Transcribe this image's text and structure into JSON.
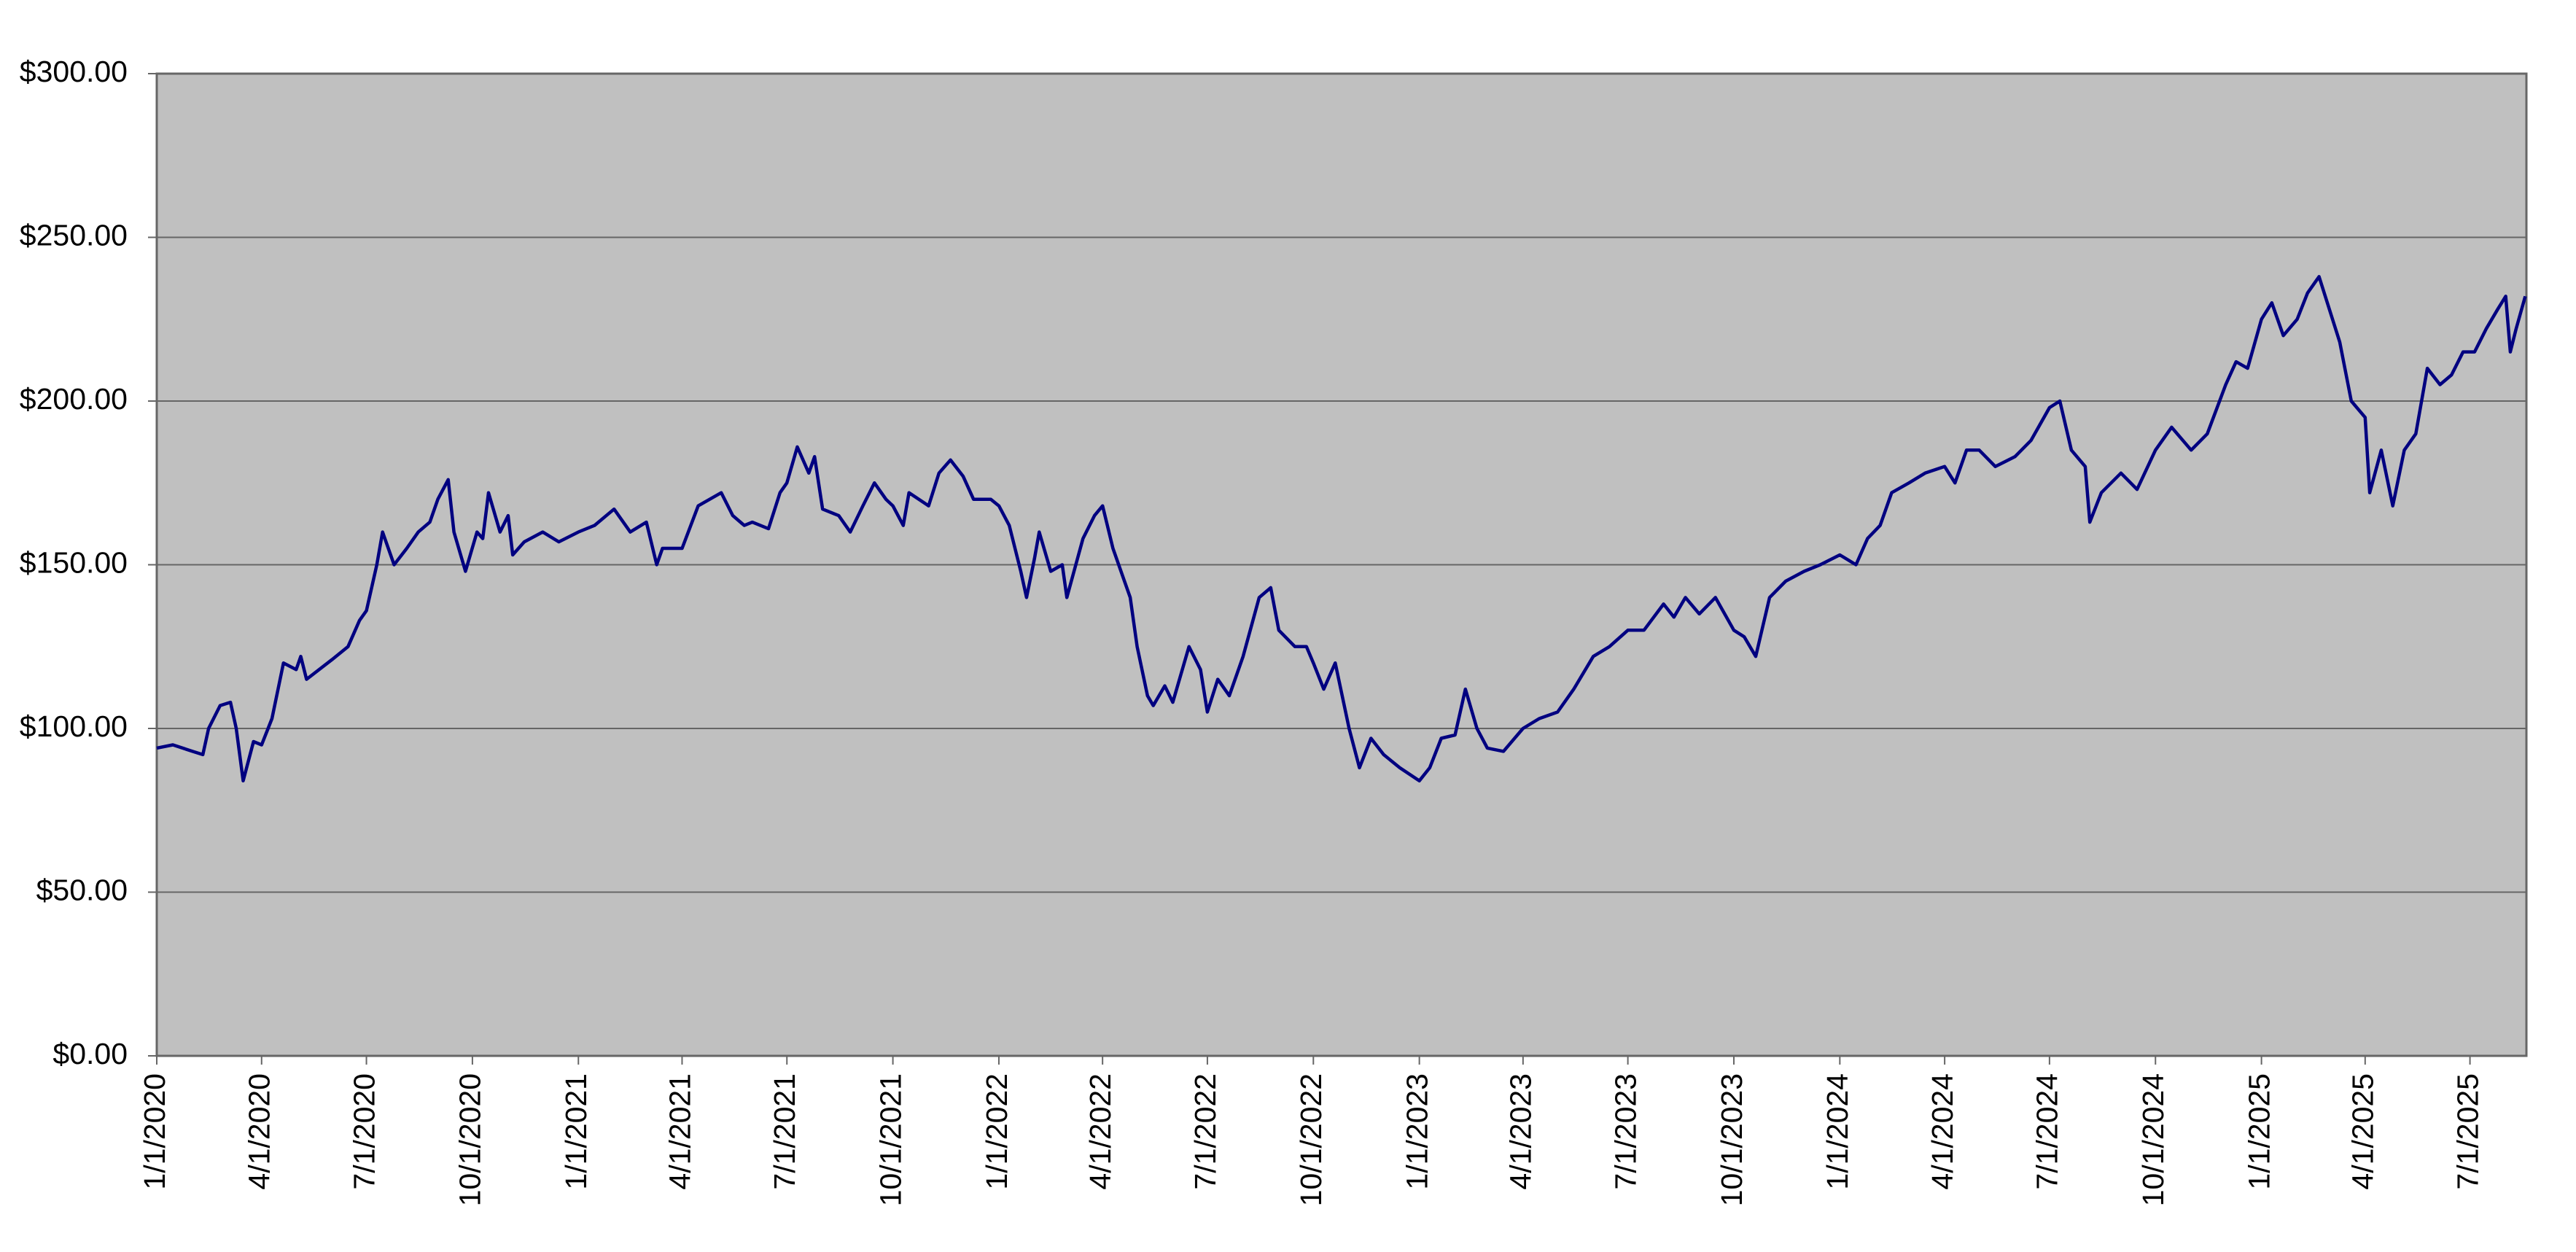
{
  "chart_data": {
    "type": "line",
    "x": [
      "1/1/2020",
      "1/15/2020",
      "2/1/2020",
      "2/10/2020",
      "2/15/2020",
      "2/25/2020",
      "3/5/2020",
      "3/10/2020",
      "3/16/2020",
      "3/25/2020",
      "4/1/2020",
      "4/10/2020",
      "4/20/2020",
      "5/1/2020",
      "5/5/2020",
      "5/10/2020",
      "6/1/2020",
      "6/15/2020",
      "6/25/2020",
      "7/1/2020",
      "7/10/2020",
      "7/15/2020",
      "7/25/2020",
      "8/5/2020",
      "8/15/2020",
      "8/25/2020",
      "9/1/2020",
      "9/10/2020",
      "9/15/2020",
      "9/25/2020",
      "10/5/2020",
      "10/10/2020",
      "10/15/2020",
      "10/25/2020",
      "11/1/2020",
      "11/5/2020",
      "11/15/2020",
      "12/1/2020",
      "12/15/2020",
      "1/1/2021",
      "1/15/2021",
      "2/1/2021",
      "2/15/2021",
      "3/1/2021",
      "3/10/2021",
      "3/15/2021",
      "4/1/2021",
      "4/15/2021",
      "4/25/2021",
      "5/5/2021",
      "5/15/2021",
      "5/25/2021",
      "6/1/2021",
      "6/15/2021",
      "6/25/2021",
      "7/1/2021",
      "7/10/2021",
      "7/20/2021",
      "7/25/2021",
      "8/1/2021",
      "8/15/2021",
      "8/25/2021",
      "9/5/2021",
      "9/15/2021",
      "9/25/2021",
      "10/1/2021",
      "10/10/2021",
      "10/15/2021",
      "11/1/2021",
      "11/10/2021",
      "11/20/2021",
      "12/1/2021",
      "12/10/2021",
      "12/25/2021",
      "1/1/2022",
      "1/10/2022",
      "1/20/2022",
      "1/25/2022",
      "2/1/2022",
      "2/5/2022",
      "2/15/2022",
      "2/25/2022",
      "3/1/2022",
      "3/15/2022",
      "3/25/2022",
      "4/1/2022",
      "4/10/2022",
      "4/20/2022",
      "4/25/2022",
      "5/1/2022",
      "5/10/2022",
      "5/15/2022",
      "5/25/2022",
      "6/1/2022",
      "6/15/2022",
      "6/25/2022",
      "7/1/2022",
      "7/10/2022",
      "7/20/2022",
      "8/1/2022",
      "8/15/2022",
      "8/25/2022",
      "9/1/2022",
      "9/15/2022",
      "9/25/2022",
      "10/1/2022",
      "10/10/2022",
      "10/20/2022",
      "11/1/2022",
      "11/10/2022",
      "11/20/2022",
      "12/1/2022",
      "12/15/2022",
      "1/1/2023",
      "1/10/2023",
      "1/20/2023",
      "2/1/2023",
      "2/10/2023",
      "2/20/2023",
      "3/1/2023",
      "3/15/2023",
      "4/1/2023",
      "4/15/2023",
      "5/1/2023",
      "5/15/2023",
      "6/1/2023",
      "6/15/2023",
      "7/1/2023",
      "7/15/2023",
      "8/1/2023",
      "8/10/2023",
      "8/20/2023",
      "9/1/2023",
      "9/15/2023",
      "10/1/2023",
      "10/10/2023",
      "10/20/2023",
      "11/1/2023",
      "11/15/2023",
      "12/1/2023",
      "12/15/2023",
      "1/1/2024",
      "1/15/2024",
      "1/25/2024",
      "2/5/2024",
      "2/15/2024",
      "3/1/2024",
      "3/15/2024",
      "4/1/2024",
      "4/10/2024",
      "4/20/2024",
      "5/1/2024",
      "5/15/2024",
      "6/1/2024",
      "6/15/2024",
      "7/1/2024",
      "7/10/2024",
      "7/20/2024",
      "8/1/2024",
      "8/5/2024",
      "8/15/2024",
      "9/1/2024",
      "9/15/2024",
      "10/1/2024",
      "10/15/2024",
      "11/1/2024",
      "11/15/2024",
      "12/1/2024",
      "12/10/2024",
      "12/20/2024",
      "1/1/2025",
      "1/10/2025",
      "1/20/2025",
      "2/1/2025",
      "2/10/2025",
      "2/20/2025",
      "3/1/2025",
      "3/10/2025",
      "3/20/2025",
      "4/1/2025",
      "4/5/2025",
      "4/15/2025",
      "4/25/2025",
      "5/5/2025",
      "5/15/2025",
      "5/25/2025",
      "6/5/2025",
      "6/15/2025",
      "6/25/2025",
      "7/5/2025",
      "7/15/2025",
      "7/25/2025",
      "8/1/2025",
      "8/5/2025",
      "8/10/2025",
      "8/18/2025"
    ],
    "series": [
      {
        "color": "#000080",
        "values": [
          94,
          95,
          93,
          92,
          100,
          107,
          108,
          100,
          84,
          96,
          95,
          103,
          120,
          118,
          122,
          115,
          121,
          125,
          133,
          136,
          150,
          160,
          150,
          155,
          160,
          163,
          170,
          176,
          160,
          148,
          160,
          158,
          172,
          160,
          165,
          153,
          157,
          160,
          157,
          160,
          162,
          167,
          160,
          163,
          150,
          155,
          155,
          168,
          170,
          172,
          165,
          162,
          163,
          161,
          172,
          175,
          186,
          178,
          183,
          167,
          165,
          160,
          168,
          175,
          170,
          168,
          162,
          172,
          168,
          178,
          182,
          177,
          170,
          170,
          168,
          162,
          148,
          140,
          152,
          160,
          148,
          150,
          140,
          158,
          165,
          168,
          155,
          145,
          140,
          125,
          110,
          107,
          113,
          108,
          125,
          118,
          105,
          115,
          110,
          122,
          140,
          143,
          130,
          125,
          125,
          120,
          112,
          120,
          100,
          88,
          97,
          92,
          88,
          84,
          88,
          97,
          98,
          112,
          100,
          94,
          93,
          100,
          103,
          105,
          112,
          122,
          125,
          130,
          130,
          138,
          134,
          140,
          135,
          140,
          130,
          128,
          122,
          140,
          145,
          148,
          150,
          153,
          150,
          158,
          162,
          172,
          175,
          178,
          180,
          175,
          185,
          185,
          180,
          183,
          188,
          198,
          200,
          185,
          180,
          163,
          172,
          178,
          173,
          185,
          192,
          185,
          190,
          205,
          212,
          210,
          225,
          230,
          220,
          225,
          233,
          238,
          228,
          218,
          200,
          195,
          172,
          185,
          168,
          185,
          190,
          210,
          205,
          208,
          215,
          215,
          222,
          228,
          232,
          215,
          222,
          232
        ]
      }
    ],
    "xlim": [
      "1/1/2020",
      "8/19/2025"
    ],
    "xticks": [
      "1/1/2020",
      "4/1/2020",
      "7/1/2020",
      "10/1/2020",
      "1/1/2021",
      "4/1/2021",
      "7/1/2021",
      "10/1/2021",
      "1/1/2022",
      "4/1/2022",
      "7/1/2022",
      "10/1/2022",
      "1/1/2023",
      "4/1/2023",
      "7/1/2023",
      "10/1/2023",
      "1/1/2024",
      "4/1/2024",
      "7/1/2024",
      "10/1/2024",
      "1/1/2025",
      "4/1/2025",
      "7/1/2025"
    ],
    "ylim": [
      0,
      300
    ],
    "yticks": [
      {
        "value": 0,
        "label": "$0.00"
      },
      {
        "value": 50,
        "label": "$50.00"
      },
      {
        "value": 100,
        "label": "$100.00"
      },
      {
        "value": 150,
        "label": "$150.00"
      },
      {
        "value": 200,
        "label": "$200.00"
      },
      {
        "value": 250,
        "label": "$250.00"
      },
      {
        "value": 300,
        "label": "$300.00"
      }
    ],
    "grid": true
  }
}
